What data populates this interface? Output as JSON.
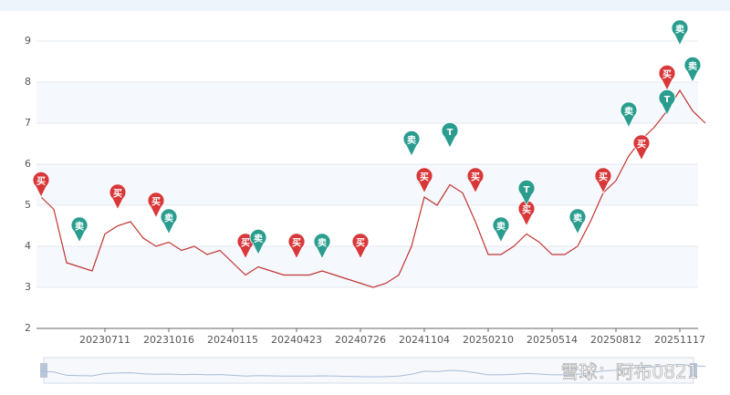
{
  "chart_data": {
    "type": "line",
    "categories": [
      null,
      null,
      null,
      null,
      null,
      "20230711",
      null,
      null,
      null,
      null,
      "20231016",
      null,
      null,
      null,
      null,
      "20240115",
      null,
      null,
      null,
      null,
      "20240423",
      null,
      null,
      null,
      null,
      "20240726",
      null,
      null,
      null,
      null,
      "20241104",
      null,
      null,
      null,
      null,
      "20250210",
      null,
      null,
      null,
      null,
      "20250514",
      null,
      null,
      null,
      null,
      "20250812",
      null,
      null,
      null,
      null,
      "20251117",
      null,
      null
    ],
    "series": [
      {
        "color": "#c23531",
        "values": [
          5.2,
          4.9,
          3.6,
          3.5,
          3.4,
          4.3,
          4.5,
          4.6,
          4.2,
          4.0,
          4.1,
          3.9,
          4.0,
          3.8,
          3.9,
          3.6,
          3.3,
          3.5,
          3.4,
          3.3,
          3.3,
          3.3,
          3.4,
          3.3,
          3.2,
          3.1,
          3.0,
          3.1,
          3.3,
          4.0,
          5.2,
          5.0,
          5.5,
          5.3,
          4.6,
          3.8,
          3.8,
          4.0,
          4.3,
          4.1,
          3.8,
          3.8,
          4.0,
          4.6,
          5.3,
          5.6,
          6.2,
          6.6,
          6.9,
          7.3,
          7.8,
          7.3,
          7.0
        ]
      },
      {
        "name": "买",
        "color": "#d9383a",
        "values": [
          5.2,
          null,
          null,
          null,
          null,
          null,
          4.9,
          null,
          null,
          4.7,
          null,
          null,
          null,
          null,
          null,
          null,
          3.7,
          null,
          null,
          null,
          3.7,
          null,
          null,
          null,
          null,
          3.7,
          null,
          null,
          null,
          null,
          5.3,
          null,
          null,
          null,
          5.3,
          null,
          null,
          null,
          4.5,
          null,
          null,
          null,
          null,
          null,
          5.3,
          null,
          null,
          6.1,
          null,
          7.8,
          null,
          null,
          null
        ]
      },
      {
        "name": "卖",
        "color": "#2a9d8f",
        "values": [
          null,
          null,
          null,
          4.1,
          null,
          null,
          null,
          null,
          null,
          null,
          4.3,
          null,
          null,
          null,
          null,
          null,
          null,
          3.8,
          null,
          null,
          null,
          null,
          3.7,
          null,
          null,
          null,
          null,
          null,
          null,
          6.2,
          null,
          null,
          null,
          null,
          null,
          null,
          4.1,
          null,
          null,
          null,
          null,
          null,
          4.3,
          null,
          null,
          null,
          6.9,
          null,
          null,
          null,
          8.9,
          8.0,
          null
        ]
      },
      {
        "name": "T",
        "color": "#2a9d8f",
        "values": [
          null,
          null,
          null,
          null,
          null,
          null,
          null,
          null,
          null,
          null,
          null,
          null,
          null,
          null,
          null,
          null,
          null,
          null,
          null,
          null,
          null,
          null,
          null,
          null,
          null,
          null,
          null,
          null,
          null,
          null,
          null,
          null,
          6.4,
          null,
          null,
          null,
          null,
          null,
          5.0,
          null,
          null,
          null,
          null,
          null,
          null,
          null,
          null,
          null,
          null,
          7.2,
          null,
          null,
          null
        ]
      }
    ],
    "ylim": [
      2,
      9
    ],
    "yticks": [
      2,
      3,
      4,
      5,
      6,
      7,
      8,
      9
    ],
    "grid": true,
    "watermark": "雪球：阿布0821"
  }
}
